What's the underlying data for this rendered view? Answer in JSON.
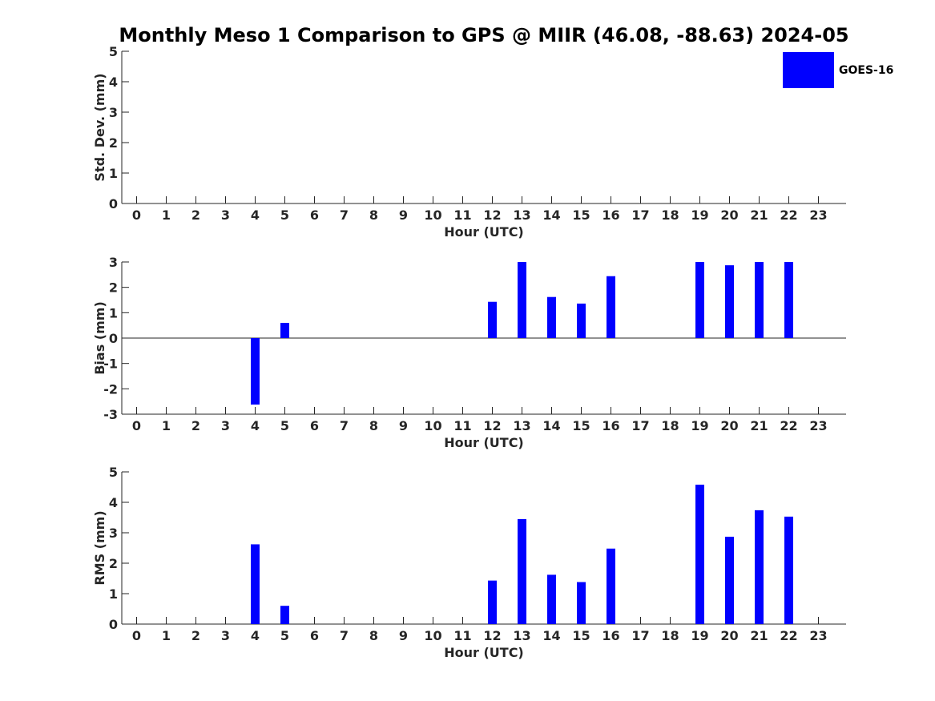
{
  "title": "Monthly Meso 1 Comparison to GPS @ MIIR (46.08, -88.63) 2024-05",
  "legend": {
    "label": "GOES-16",
    "color": "#0000ff"
  },
  "chart_data": [
    {
      "type": "bar",
      "name": "stddev",
      "ylabel": "Std. Dev. (mm)",
      "xlabel": "Hour (UTC)",
      "ylim": [
        0,
        5
      ],
      "yticks": [
        0,
        1,
        2,
        3,
        4,
        5
      ],
      "categories": [
        0,
        1,
        2,
        3,
        4,
        5,
        6,
        7,
        8,
        9,
        10,
        11,
        12,
        13,
        14,
        15,
        16,
        17,
        18,
        19,
        20,
        21,
        22,
        23
      ],
      "values": [
        null,
        null,
        null,
        null,
        0,
        0,
        null,
        null,
        null,
        null,
        null,
        null,
        0,
        0,
        0,
        0,
        0,
        null,
        null,
        0,
        0,
        0,
        0,
        null
      ]
    },
    {
      "type": "bar",
      "name": "bias",
      "ylabel": "Bias (mm)",
      "xlabel": "Hour (UTC)",
      "ylim": [
        -3,
        3
      ],
      "yticks": [
        -3,
        -2,
        -1,
        0,
        1,
        2,
        3
      ],
      "categories": [
        0,
        1,
        2,
        3,
        4,
        5,
        6,
        7,
        8,
        9,
        10,
        11,
        12,
        13,
        14,
        15,
        16,
        17,
        18,
        19,
        20,
        21,
        22,
        23
      ],
      "values": [
        null,
        null,
        null,
        null,
        -2.62,
        0.6,
        null,
        null,
        null,
        null,
        null,
        null,
        1.43,
        3.0,
        1.62,
        1.36,
        2.44,
        null,
        null,
        3.0,
        2.87,
        3.0,
        3.0,
        null
      ]
    },
    {
      "type": "bar",
      "name": "rms",
      "ylabel": "RMS (mm)",
      "xlabel": "Hour (UTC)",
      "ylim": [
        0,
        5
      ],
      "yticks": [
        0,
        1,
        2,
        3,
        4,
        5
      ],
      "categories": [
        0,
        1,
        2,
        3,
        4,
        5,
        6,
        7,
        8,
        9,
        10,
        11,
        12,
        13,
        14,
        15,
        16,
        17,
        18,
        19,
        20,
        21,
        22,
        23
      ],
      "values": [
        null,
        null,
        null,
        null,
        2.62,
        0.6,
        null,
        null,
        null,
        null,
        null,
        null,
        1.43,
        3.45,
        1.62,
        1.38,
        2.48,
        null,
        null,
        4.58,
        2.87,
        3.74,
        3.53,
        null
      ]
    }
  ]
}
